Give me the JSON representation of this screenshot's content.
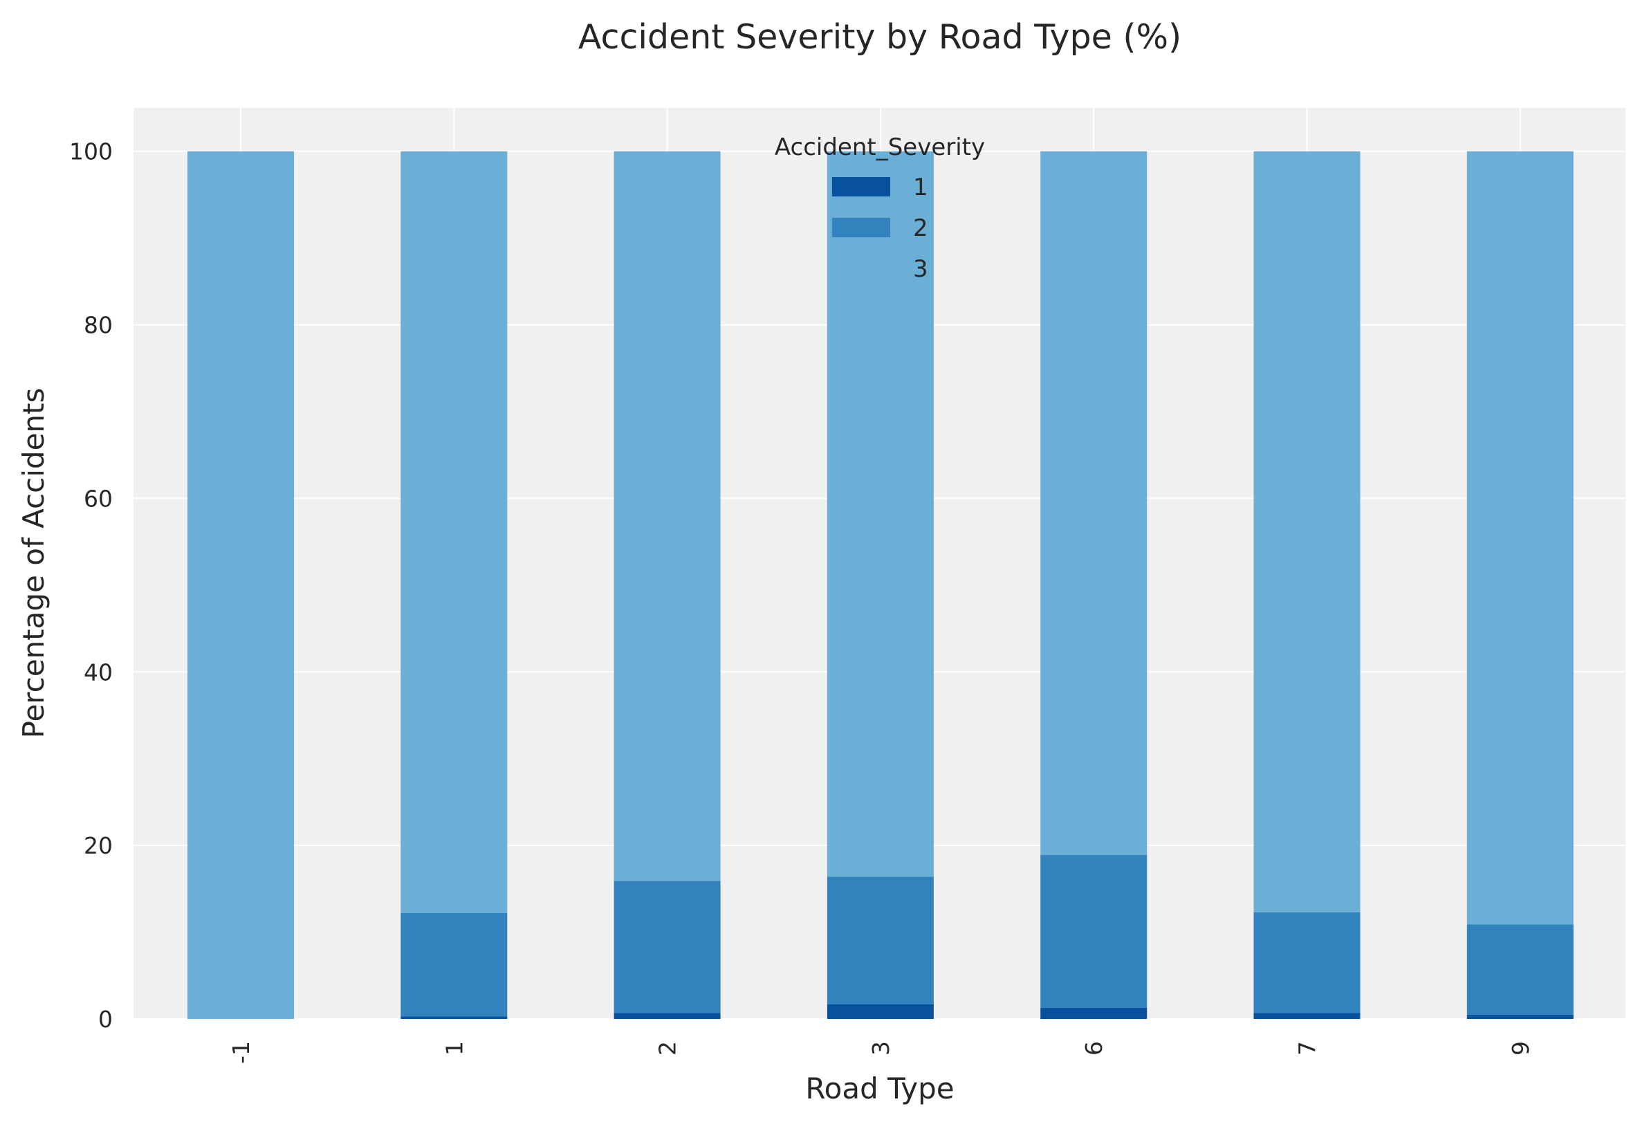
{
  "chart_data": {
    "type": "bar",
    "stacked": true,
    "title": "Accident Severity by Road Type (%)",
    "xlabel": "Road Type",
    "ylabel": "Percentage of Accidents",
    "categories": [
      "-1",
      "1",
      "2",
      "3",
      "6",
      "7",
      "9"
    ],
    "ylim": [
      0,
      105
    ],
    "yticks": [
      0,
      20,
      40,
      60,
      80,
      100
    ],
    "grid": true,
    "legend": {
      "title": "Accident_Severity",
      "position": "upper center"
    },
    "series": [
      {
        "name": "1",
        "color": "#08519c",
        "values": [
          0.0,
          0.3,
          0.7,
          1.7,
          1.3,
          0.7,
          0.5
        ]
      },
      {
        "name": "2",
        "color": "#3182bd",
        "values": [
          0.0,
          11.9,
          15.2,
          14.7,
          17.6,
          11.6,
          10.4
        ]
      },
      {
        "name": "3",
        "color": "#6baed6",
        "values": [
          100.0,
          87.8,
          84.1,
          83.6,
          81.1,
          87.7,
          89.1
        ]
      }
    ],
    "colors": {
      "plot_background": "#f0f0f0",
      "grid": "#ffffff",
      "text": "#262626"
    }
  }
}
